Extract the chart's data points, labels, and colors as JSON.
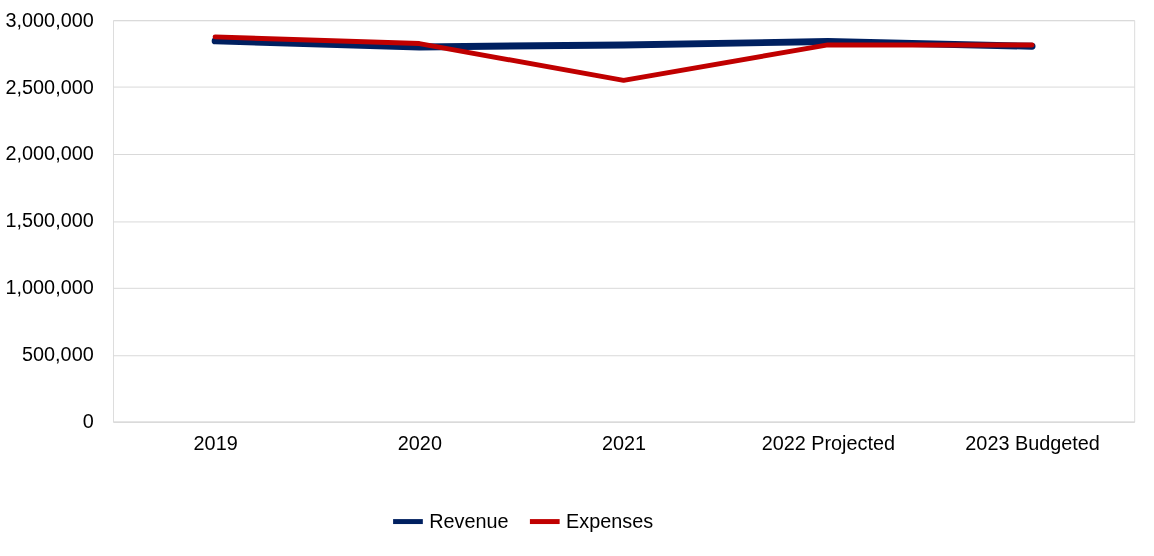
{
  "chart_data": {
    "type": "line",
    "categories": [
      "2019",
      "2020",
      "2021",
      "2022 Projected",
      "2023 Budgeted"
    ],
    "series": [
      {
        "name": "Revenue",
        "color": "#002060",
        "values": [
          2845000,
          2800000,
          2815000,
          2840000,
          2805000
        ]
      },
      {
        "name": "Expenses",
        "color": "#c00000",
        "values": [
          2875000,
          2825000,
          2550000,
          2815000,
          2815000
        ]
      }
    ],
    "ylim": [
      0,
      3000000
    ],
    "yticks": [
      {
        "value": 0,
        "label": "0"
      },
      {
        "value": 500000,
        "label": "500,000"
      },
      {
        "value": 1000000,
        "label": "1,000,000"
      },
      {
        "value": 1500000,
        "label": "1,500,000"
      },
      {
        "value": 2000000,
        "label": "2,000,000"
      },
      {
        "value": 2500000,
        "label": "2,500,000"
      },
      {
        "value": 3000000,
        "label": "3,000,000"
      }
    ],
    "grid": "y",
    "legend": "bottom",
    "marker": "none",
    "line_style": "solid"
  }
}
